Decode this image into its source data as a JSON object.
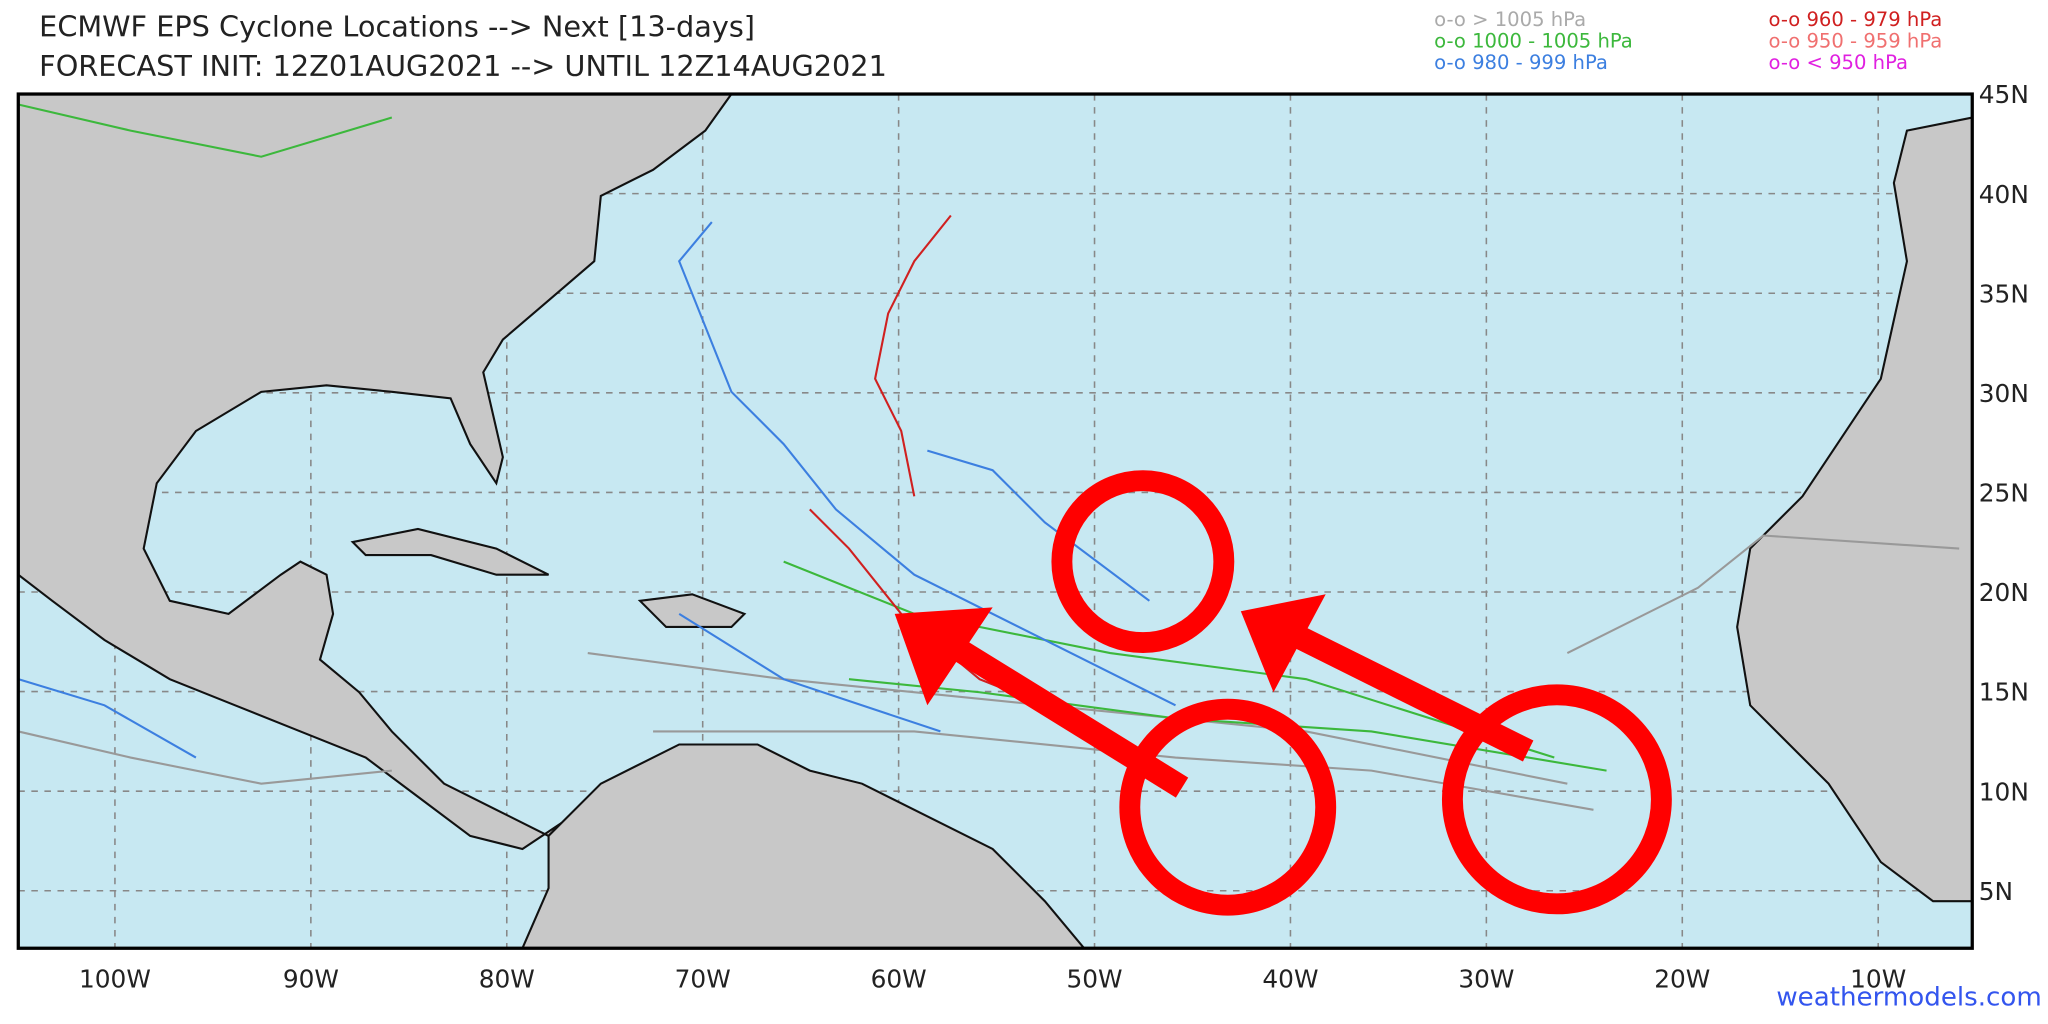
{
  "header": {
    "title": "ECMWF EPS Cyclone Locations --> Next [13-days]",
    "subtitle": "FORECAST INIT: 12Z01AUG2021 --> UNTIL 12Z14AUG2021"
  },
  "legend": [
    {
      "label": "o-o > 1005 hPa",
      "color": "#aaaaaa"
    },
    {
      "label": "o-o 1000 - 1005 hPa",
      "color": "#3cb83c"
    },
    {
      "label": "o-o 980 - 999 hPa",
      "color": "#3c7fe0"
    },
    {
      "label": "o-o 960 - 979 hPa",
      "color": "#d02020"
    },
    {
      "label": "o-o 950 - 959 hPa",
      "color": "#f07070"
    },
    {
      "label": "o-o < 950 hPa",
      "color": "#e020e0"
    }
  ],
  "latitude_labels": [
    "45N",
    "40N",
    "35N",
    "30N",
    "25N",
    "20N",
    "15N",
    "10N",
    "5N"
  ],
  "longitude_labels": [
    "100W",
    "90W",
    "80W",
    "70W",
    "60W",
    "50W",
    "40W",
    "30W",
    "20W",
    "10W"
  ],
  "watermark": "weathermodels.com"
}
